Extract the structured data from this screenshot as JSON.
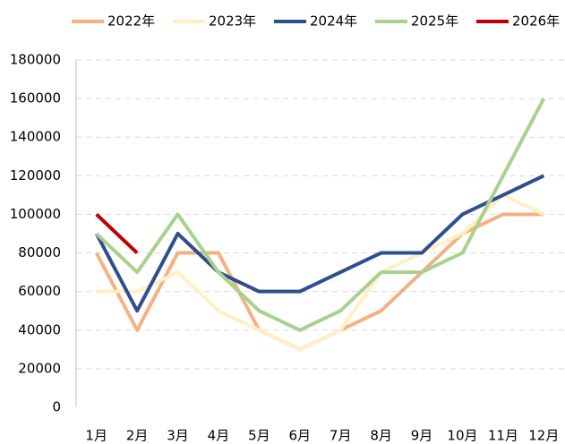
{
  "chart_data": {
    "type": "line",
    "categories": [
      "1月",
      "2月",
      "3月",
      "4月",
      "5月",
      "6月",
      "7月",
      "8月",
      "9月",
      "10月",
      "11月",
      "12月"
    ],
    "series": [
      {
        "name": "2022年",
        "color": "#F4B183",
        "values": [
          80000,
          40000,
          80000,
          80000,
          40000,
          30000,
          40000,
          50000,
          70000,
          90000,
          100000,
          100000
        ]
      },
      {
        "name": "2023年",
        "color": "#FFF0C4",
        "values": [
          60000,
          60000,
          70000,
          50000,
          40000,
          30000,
          40000,
          70000,
          80000,
          90000,
          110000,
          100000
        ]
      },
      {
        "name": "2024年",
        "color": "#2F4E8F",
        "values": [
          90000,
          50000,
          90000,
          70000,
          60000,
          60000,
          70000,
          80000,
          80000,
          100000,
          110000,
          120000
        ]
      },
      {
        "name": "2025年",
        "color": "#A9D18E",
        "values": [
          90000,
          70000,
          100000,
          70000,
          50000,
          40000,
          50000,
          70000,
          70000,
          80000,
          120000,
          160000
        ]
      },
      {
        "name": "2026年",
        "color": "#C00000",
        "values": [
          100000,
          80000,
          null,
          null,
          null,
          null,
          null,
          null,
          null,
          null,
          null,
          null
        ]
      }
    ],
    "ylim": [
      0,
      180000
    ],
    "yticks": [
      0,
      20000,
      40000,
      60000,
      80000,
      100000,
      120000,
      140000,
      160000,
      180000
    ],
    "grid": true,
    "legend": "top"
  }
}
